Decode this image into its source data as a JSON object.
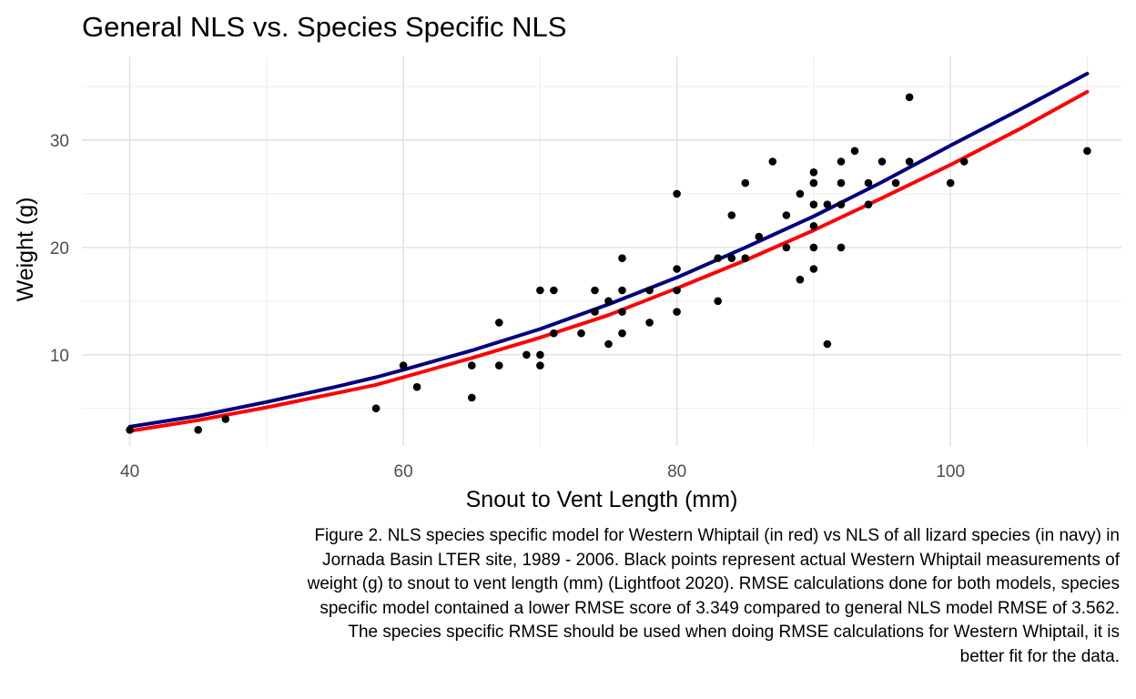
{
  "chart_data": {
    "type": "scatter",
    "title": "General NLS vs. Species Specific NLS",
    "xlabel": "Snout to Vent Length (mm)",
    "ylabel": "Weight (g)",
    "xlim": [
      36.5,
      112.5
    ],
    "ylim": [
      1.5,
      37.8
    ],
    "x_ticks": [
      40,
      60,
      80,
      100
    ],
    "y_ticks": [
      10,
      20,
      30
    ],
    "grid": true,
    "legend": "none",
    "points_color": "#000000",
    "points": [
      [
        40,
        3
      ],
      [
        45,
        3
      ],
      [
        47,
        4
      ],
      [
        58,
        5
      ],
      [
        60,
        9
      ],
      [
        61,
        7
      ],
      [
        65,
        6
      ],
      [
        65,
        9
      ],
      [
        67,
        9
      ],
      [
        67,
        13
      ],
      [
        69,
        10
      ],
      [
        70,
        9
      ],
      [
        70,
        10
      ],
      [
        70,
        16
      ],
      [
        71,
        12
      ],
      [
        71,
        16
      ],
      [
        73,
        12
      ],
      [
        74,
        14
      ],
      [
        74,
        16
      ],
      [
        75,
        11
      ],
      [
        75,
        15
      ],
      [
        76,
        12
      ],
      [
        76,
        14
      ],
      [
        76,
        16
      ],
      [
        76,
        19
      ],
      [
        78,
        13
      ],
      [
        78,
        16
      ],
      [
        80,
        14
      ],
      [
        80,
        16
      ],
      [
        80,
        18
      ],
      [
        80,
        25
      ],
      [
        83,
        15
      ],
      [
        83,
        19
      ],
      [
        84,
        19
      ],
      [
        84,
        23
      ],
      [
        85,
        19
      ],
      [
        85,
        26
      ],
      [
        86,
        21
      ],
      [
        87,
        28
      ],
      [
        88,
        20
      ],
      [
        88,
        23
      ],
      [
        89,
        17
      ],
      [
        89,
        25
      ],
      [
        90,
        18
      ],
      [
        90,
        20
      ],
      [
        90,
        22
      ],
      [
        90,
        24
      ],
      [
        90,
        26
      ],
      [
        90,
        27
      ],
      [
        91,
        11
      ],
      [
        91,
        24
      ],
      [
        92,
        20
      ],
      [
        92,
        24
      ],
      [
        92,
        26
      ],
      [
        92,
        28
      ],
      [
        93,
        29
      ],
      [
        94,
        24
      ],
      [
        94,
        26
      ],
      [
        95,
        28
      ],
      [
        96,
        26
      ],
      [
        97,
        28
      ],
      [
        97,
        34
      ],
      [
        100,
        26
      ],
      [
        101,
        28
      ],
      [
        110,
        29
      ]
    ],
    "series": [
      {
        "color": "#00007f",
        "x": [
          40,
          45,
          50,
          55,
          58,
          60,
          65,
          70,
          75,
          80,
          85,
          90,
          95,
          100,
          105,
          110
        ],
        "values": [
          3.3,
          4.3,
          5.6,
          7.0,
          7.9,
          8.6,
          10.4,
          12.4,
          14.7,
          17.2,
          20.0,
          22.9,
          26.1,
          29.5,
          32.8,
          36.2
        ]
      },
      {
        "color": "#ff0000",
        "x": [
          40,
          45,
          50,
          55,
          58,
          60,
          65,
          70,
          75,
          80,
          85,
          90,
          95,
          100,
          105,
          110
        ],
        "values": [
          2.9,
          3.9,
          5.1,
          6.4,
          7.2,
          7.9,
          9.7,
          11.6,
          13.7,
          16.2,
          18.8,
          21.6,
          24.6,
          27.7,
          31.0,
          34.5
        ]
      }
    ]
  },
  "caption": "Figure 2. NLS species specific model for Western Whiptail (in red) vs NLS of all lizard species (in navy) in Jornada Basin LTER site, 1989 - 2006. Black points represent actual Western Whiptail measurements of weight (g) to snout to vent length (mm) (Lightfoot 2020). RMSE calculations done for both models, species specific model contained a lower RMSE score of 3.349 compared to general NLS model RMSE of 3.562. The species specific RMSE should be used when doing RMSE calculations for Western Whiptail, it is better fit for the data."
}
